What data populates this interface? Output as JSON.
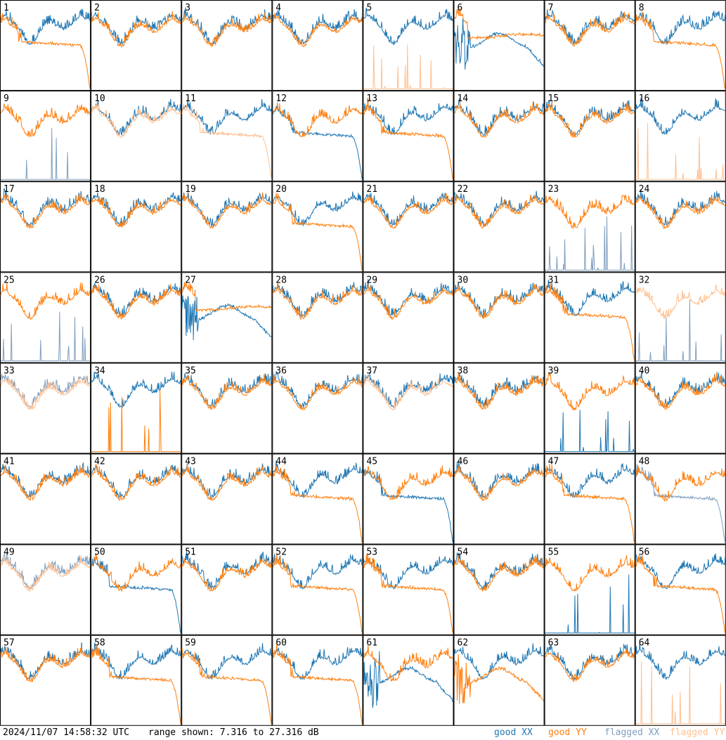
{
  "footer": {
    "timestamp": "2024/11/07 14:58:32 UTC",
    "range_text": "range shown: 7.316 to 27.316 dB"
  },
  "legend": {
    "good_xx": "good XX",
    "good_yy": "good YY",
    "flagged_xx": "flagged XX",
    "flagged_yy": "flagged YY"
  },
  "colors": {
    "good_xx": "#1f77b4",
    "good_yy": "#ff7f0e",
    "flagged_xx": "#7f9fbf",
    "flagged_yy": "#ffbf8f"
  },
  "chart_data": {
    "type": "line",
    "layout": "8x8 grid of small multiples, one panel per antenna",
    "ylim_db": [
      7.316,
      27.316
    ],
    "series_names": [
      "good XX",
      "good YY",
      "flagged XX",
      "flagged YY"
    ],
    "panels": [
      {
        "id": 1,
        "xx": "normal",
        "yy": "rolloff",
        "xx_flag": false,
        "yy_flag": false
      },
      {
        "id": 2,
        "xx": "normal",
        "yy": "normal",
        "xx_flag": false,
        "yy_flag": false
      },
      {
        "id": 3,
        "xx": "normal",
        "yy": "normal",
        "xx_flag": false,
        "yy_flag": false
      },
      {
        "id": 4,
        "xx": "normal",
        "yy": "normal",
        "xx_flag": false,
        "yy_flag": false
      },
      {
        "id": 5,
        "xx": "normal",
        "yy": "dead",
        "xx_flag": false,
        "yy_flag": true
      },
      {
        "id": 6,
        "xx": "dip",
        "yy": "flat",
        "xx_flag": false,
        "yy_flag": false
      },
      {
        "id": 7,
        "xx": "normal",
        "yy": "normal",
        "xx_flag": false,
        "yy_flag": false
      },
      {
        "id": 8,
        "xx": "normal",
        "yy": "rolloff",
        "xx_flag": false,
        "yy_flag": false
      },
      {
        "id": 9,
        "xx": "dead",
        "yy": "normal",
        "xx_flag": true,
        "yy_flag": false
      },
      {
        "id": 10,
        "xx": "normal",
        "yy": "normal",
        "xx_flag": false,
        "yy_flag": true
      },
      {
        "id": 11,
        "xx": "normal",
        "yy": "rolloff",
        "xx_flag": false,
        "yy_flag": true
      },
      {
        "id": 12,
        "xx": "rolloff",
        "yy": "normal",
        "xx_flag": false,
        "yy_flag": false
      },
      {
        "id": 13,
        "xx": "normal",
        "yy": "rolloff",
        "xx_flag": false,
        "yy_flag": false
      },
      {
        "id": 14,
        "xx": "normal",
        "yy": "normal",
        "xx_flag": false,
        "yy_flag": false
      },
      {
        "id": 15,
        "xx": "normal",
        "yy": "normal",
        "xx_flag": false,
        "yy_flag": false
      },
      {
        "id": 16,
        "xx": "normal",
        "yy": "dead",
        "xx_flag": false,
        "yy_flag": true
      },
      {
        "id": 17,
        "xx": "normal",
        "yy": "normal",
        "xx_flag": false,
        "yy_flag": false
      },
      {
        "id": 18,
        "xx": "normal",
        "yy": "normal",
        "xx_flag": false,
        "yy_flag": false
      },
      {
        "id": 19,
        "xx": "normal",
        "yy": "normal",
        "xx_flag": false,
        "yy_flag": false
      },
      {
        "id": 20,
        "xx": "normal",
        "yy": "rolloff",
        "xx_flag": false,
        "yy_flag": false
      },
      {
        "id": 21,
        "xx": "normal",
        "yy": "normal",
        "xx_flag": false,
        "yy_flag": false
      },
      {
        "id": 22,
        "xx": "normal",
        "yy": "normal",
        "xx_flag": false,
        "yy_flag": false
      },
      {
        "id": 23,
        "xx": "dead",
        "yy": "normal",
        "xx_flag": true,
        "yy_flag": false
      },
      {
        "id": 24,
        "xx": "normal",
        "yy": "normal",
        "xx_flag": false,
        "yy_flag": false
      },
      {
        "id": 25,
        "xx": "dead",
        "yy": "normal",
        "xx_flag": true,
        "yy_flag": false
      },
      {
        "id": 26,
        "xx": "normal",
        "yy": "normal",
        "xx_flag": false,
        "yy_flag": false
      },
      {
        "id": 27,
        "xx": "dip",
        "yy": "flat",
        "xx_flag": false,
        "yy_flag": false
      },
      {
        "id": 28,
        "xx": "normal",
        "yy": "normal",
        "xx_flag": false,
        "yy_flag": false
      },
      {
        "id": 29,
        "xx": "normal",
        "yy": "normal",
        "xx_flag": false,
        "yy_flag": false
      },
      {
        "id": 30,
        "xx": "normal",
        "yy": "normal",
        "xx_flag": false,
        "yy_flag": false
      },
      {
        "id": 31,
        "xx": "normal",
        "yy": "rolloff",
        "xx_flag": false,
        "yy_flag": false
      },
      {
        "id": 32,
        "xx": "dead",
        "yy": "normal",
        "xx_flag": true,
        "yy_flag": true
      },
      {
        "id": 33,
        "xx": "normal",
        "yy": "normal",
        "xx_flag": true,
        "yy_flag": true
      },
      {
        "id": 34,
        "xx": "normal",
        "yy": "dead",
        "xx_flag": false,
        "yy_flag": false
      },
      {
        "id": 35,
        "xx": "normal",
        "yy": "normal",
        "xx_flag": false,
        "yy_flag": false
      },
      {
        "id": 36,
        "xx": "normal",
        "yy": "normal",
        "xx_flag": false,
        "yy_flag": false
      },
      {
        "id": 37,
        "xx": "normal",
        "yy": "normal",
        "xx_flag": false,
        "yy_flag": true
      },
      {
        "id": 38,
        "xx": "normal",
        "yy": "normal",
        "xx_flag": false,
        "yy_flag": false
      },
      {
        "id": 39,
        "xx": "dead",
        "yy": "normal",
        "xx_flag": false,
        "yy_flag": false
      },
      {
        "id": 40,
        "xx": "normal",
        "yy": "normal",
        "xx_flag": false,
        "yy_flag": false
      },
      {
        "id": 41,
        "xx": "normal",
        "yy": "normal",
        "xx_flag": false,
        "yy_flag": false
      },
      {
        "id": 42,
        "xx": "normal",
        "yy": "normal",
        "xx_flag": false,
        "yy_flag": false
      },
      {
        "id": 43,
        "xx": "normal",
        "yy": "normal",
        "xx_flag": false,
        "yy_flag": false
      },
      {
        "id": 44,
        "xx": "normal",
        "yy": "rolloff",
        "xx_flag": false,
        "yy_flag": false
      },
      {
        "id": 45,
        "xx": "rolloff",
        "yy": "normal",
        "xx_flag": false,
        "yy_flag": false
      },
      {
        "id": 46,
        "xx": "normal",
        "yy": "normal",
        "xx_flag": false,
        "yy_flag": false
      },
      {
        "id": 47,
        "xx": "normal",
        "yy": "rolloff",
        "xx_flag": false,
        "yy_flag": false
      },
      {
        "id": 48,
        "xx": "rolloff",
        "yy": "normal",
        "xx_flag": true,
        "yy_flag": false
      },
      {
        "id": 49,
        "xx": "normal",
        "yy": "normal",
        "xx_flag": true,
        "yy_flag": true
      },
      {
        "id": 50,
        "xx": "rolloff",
        "yy": "normal",
        "xx_flag": false,
        "yy_flag": false
      },
      {
        "id": 51,
        "xx": "normal",
        "yy": "normal",
        "xx_flag": false,
        "yy_flag": false
      },
      {
        "id": 52,
        "xx": "normal",
        "yy": "rolloff",
        "xx_flag": false,
        "yy_flag": false
      },
      {
        "id": 53,
        "xx": "normal",
        "yy": "rolloff",
        "xx_flag": false,
        "yy_flag": false
      },
      {
        "id": 54,
        "xx": "normal",
        "yy": "normal",
        "xx_flag": false,
        "yy_flag": false
      },
      {
        "id": 55,
        "xx": "dead",
        "yy": "normal",
        "xx_flag": false,
        "yy_flag": false
      },
      {
        "id": 56,
        "xx": "normal",
        "yy": "rolloff",
        "xx_flag": false,
        "yy_flag": false
      },
      {
        "id": 57,
        "xx": "normal",
        "yy": "normal",
        "xx_flag": false,
        "yy_flag": false
      },
      {
        "id": 58,
        "xx": "normal",
        "yy": "rolloff",
        "xx_flag": false,
        "yy_flag": false
      },
      {
        "id": 59,
        "xx": "normal",
        "yy": "rolloff",
        "xx_flag": false,
        "yy_flag": false
      },
      {
        "id": 60,
        "xx": "normal",
        "yy": "rolloff",
        "xx_flag": false,
        "yy_flag": false
      },
      {
        "id": 61,
        "xx": "dip",
        "yy": "normal",
        "xx_flag": false,
        "yy_flag": false
      },
      {
        "id": 62,
        "xx": "normal",
        "yy": "dip",
        "xx_flag": false,
        "yy_flag": false
      },
      {
        "id": 63,
        "xx": "normal",
        "yy": "normal",
        "xx_flag": false,
        "yy_flag": false
      },
      {
        "id": 64,
        "xx": "normal",
        "yy": "dead",
        "xx_flag": false,
        "yy_flag": true
      }
    ]
  }
}
